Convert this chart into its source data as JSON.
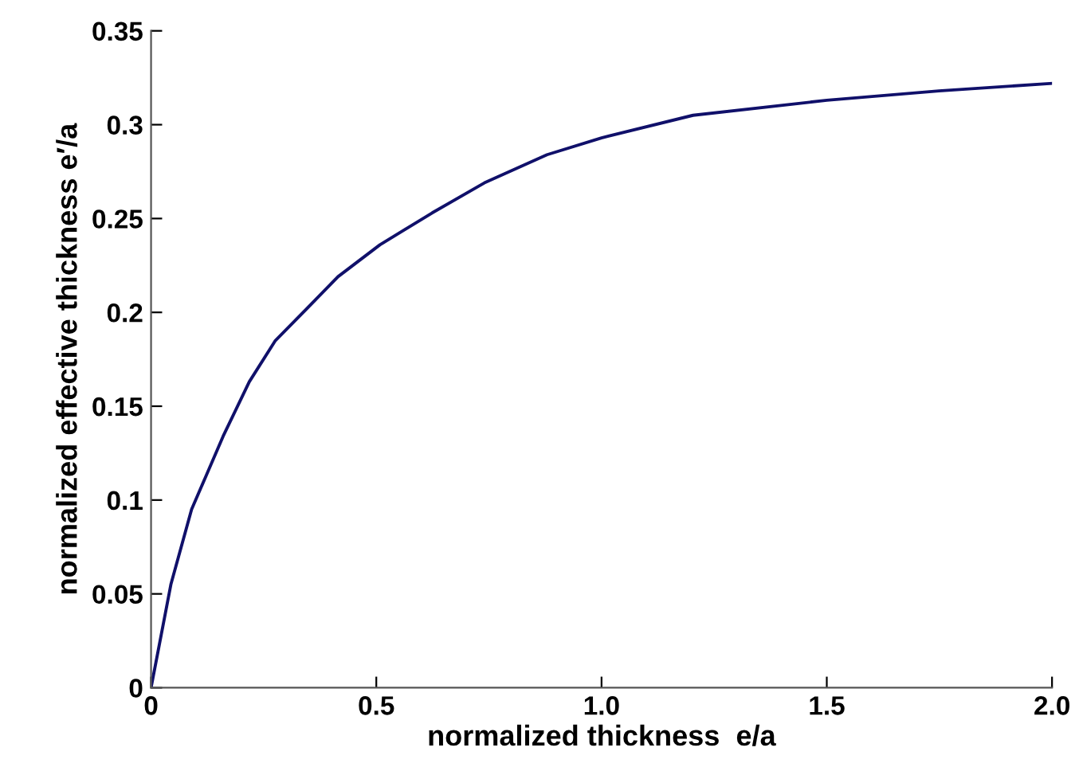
{
  "chart_data": {
    "type": "line",
    "xlabel": "normalized thickness  e/a",
    "ylabel": "normalized effective thickness e′/a",
    "x": [
      0,
      0.044,
      0.09,
      0.16,
      0.218,
      0.276,
      0.346,
      0.415,
      0.508,
      0.624,
      0.74,
      0.879,
      1.0,
      1.203,
      1.5,
      1.749,
      2.0
    ],
    "series": [
      {
        "color": "#10106a",
        "values": [
          0,
          0.055,
          0.095,
          0.134,
          0.163,
          0.185,
          0.202,
          0.219,
          0.236,
          0.253,
          0.269,
          0.284,
          0.293,
          0.305,
          0.313,
          0.318,
          0.322
        ]
      }
    ],
    "xlim": [
      0,
      2.0
    ],
    "xticks": [
      0,
      0.5,
      {
        "value": 1.0,
        "label": "1.0"
      },
      1.5,
      {
        "value": 2.0,
        "label": "2.0"
      }
    ],
    "ylim": [
      0,
      0.35
    ],
    "yticks": [
      0,
      0.05,
      0.1,
      0.15,
      0.2,
      0.25,
      0.3,
      0.35
    ],
    "grid": false,
    "marker": "none",
    "line_style": "solid"
  }
}
